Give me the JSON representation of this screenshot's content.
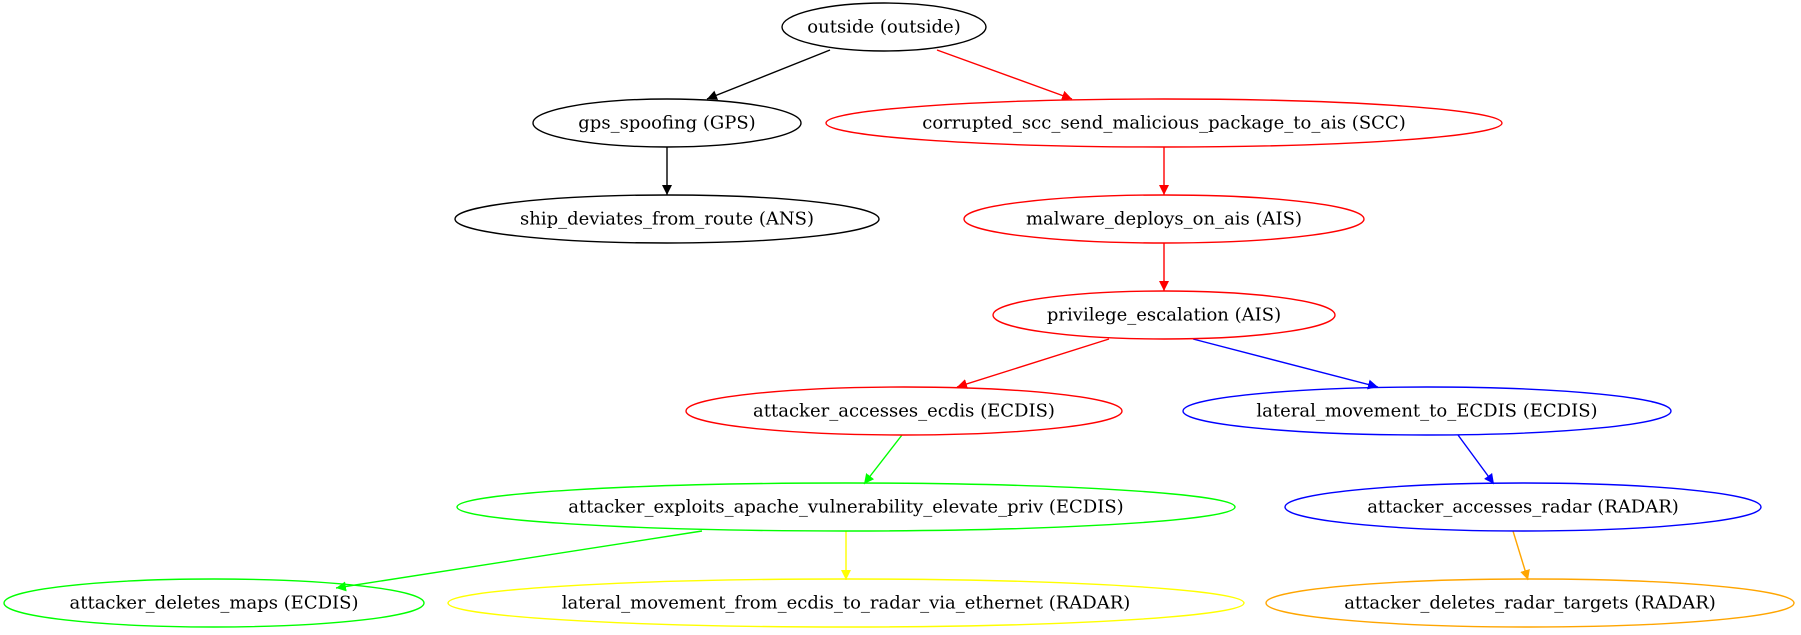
{
  "nodes": [
    {
      "id": "outside",
      "label": "outside (outside)",
      "color": "#000000"
    },
    {
      "id": "gps",
      "label": "gps_spoofing (GPS)",
      "color": "#000000"
    },
    {
      "id": "scc",
      "label": "corrupted_scc_send_malicious_package_to_ais (SCC)",
      "color": "#ff0000"
    },
    {
      "id": "ans",
      "label": "ship_deviates_from_route (ANS)",
      "color": "#000000"
    },
    {
      "id": "malware",
      "label": "malware_deploys_on_ais (AIS)",
      "color": "#ff0000"
    },
    {
      "id": "priv",
      "label": "privilege_escalation (AIS)",
      "color": "#ff0000"
    },
    {
      "id": "ecdis_access",
      "label": "attacker_accesses_ecdis (ECDIS)",
      "color": "#ff0000"
    },
    {
      "id": "lat_ecdis",
      "label": "lateral_movement_to_ECDIS (ECDIS)",
      "color": "#0000ff"
    },
    {
      "id": "apache",
      "label": "attacker_exploits_apache_vulnerability_elevate_priv (ECDIS)",
      "color": "#00ff00"
    },
    {
      "id": "radar_access",
      "label": "attacker_accesses_radar (RADAR)",
      "color": "#0000ff"
    },
    {
      "id": "del_maps",
      "label": "attacker_deletes_maps (ECDIS)",
      "color": "#00ff00"
    },
    {
      "id": "lat_radar",
      "label": "lateral_movement_from_ecdis_to_radar_via_ethernet (RADAR)",
      "color": "#ffff00"
    },
    {
      "id": "del_radar",
      "label": "attacker_deletes_radar_targets (RADAR)",
      "color": "#ffa500"
    }
  ],
  "edges": [
    {
      "from": "outside",
      "to": "gps",
      "color": "#000000"
    },
    {
      "from": "outside",
      "to": "scc",
      "color": "#ff0000"
    },
    {
      "from": "gps",
      "to": "ans",
      "color": "#000000"
    },
    {
      "from": "scc",
      "to": "malware",
      "color": "#ff0000"
    },
    {
      "from": "malware",
      "to": "priv",
      "color": "#ff0000"
    },
    {
      "from": "priv",
      "to": "ecdis_access",
      "color": "#ff0000"
    },
    {
      "from": "priv",
      "to": "lat_ecdis",
      "color": "#0000ff"
    },
    {
      "from": "ecdis_access",
      "to": "apache",
      "color": "#00ff00"
    },
    {
      "from": "lat_ecdis",
      "to": "radar_access",
      "color": "#0000ff"
    },
    {
      "from": "apache",
      "to": "del_maps",
      "color": "#00ff00"
    },
    {
      "from": "apache",
      "to": "lat_radar",
      "color": "#ffff00"
    },
    {
      "from": "radar_access",
      "to": "del_radar",
      "color": "#ffa500"
    }
  ]
}
